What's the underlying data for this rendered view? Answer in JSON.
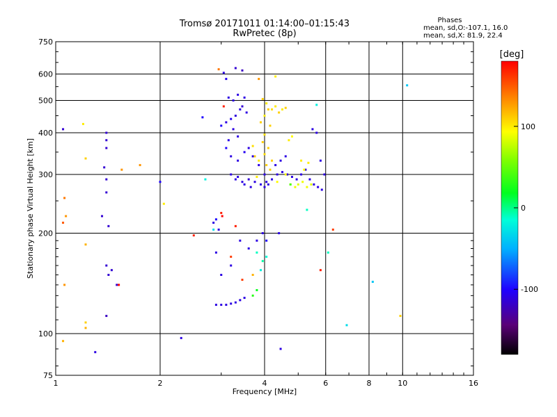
{
  "chart_data": {
    "type": "scatter",
    "title": "Tromsø 20171011 01:14:00–01:15:43",
    "subtitle": "RwPretec (8p)",
    "xlabel": "Frequency [MHz]",
    "ylabel": "Stationary phase Virtual Height [km]",
    "x_scale": "log",
    "y_scale": "log",
    "xlim": [
      1,
      16
    ],
    "ylim": [
      75,
      750
    ],
    "x_ticks": [
      "1",
      "2",
      "4",
      "6",
      "8",
      "10",
      "16"
    ],
    "y_ticks": [
      "75",
      "100",
      "200",
      "300",
      "400",
      "500",
      "600",
      "750"
    ],
    "grid": true,
    "phases": {
      "header": "Phases",
      "o_line": "mean, sd,O:-107.1, 16.0",
      "x_line": "mean, sd,X:  81.9, 22.4"
    },
    "colorbar": {
      "label": "[deg]",
      "range": [
        -180,
        180
      ],
      "ticks": [
        "100",
        "0",
        "-100"
      ]
    },
    "series": [
      {
        "points": [
          [
            3.05,
            605,
            -110
          ],
          [
            3.3,
            625,
            -115
          ],
          [
            3.45,
            615,
            -120
          ],
          [
            3.1,
            580,
            -105
          ],
          [
            3.15,
            510,
            -110
          ],
          [
            3.25,
            500,
            -110
          ],
          [
            3.35,
            520,
            -110
          ],
          [
            3.5,
            510,
            -110
          ],
          [
            3.4,
            470,
            -110
          ],
          [
            3.3,
            450,
            -112
          ],
          [
            3.2,
            440,
            -105
          ],
          [
            3.1,
            430,
            -110
          ],
          [
            3.25,
            410,
            -110
          ],
          [
            3.35,
            390,
            -110
          ],
          [
            3.15,
            380,
            -108
          ],
          [
            3.0,
            420,
            -100
          ],
          [
            3.45,
            480,
            -115
          ],
          [
            3.55,
            460,
            -110
          ],
          [
            3.1,
            360,
            -100
          ],
          [
            3.2,
            340,
            -110
          ],
          [
            3.35,
            330,
            -110
          ],
          [
            3.5,
            350,
            -105
          ],
          [
            3.2,
            300,
            -110
          ],
          [
            3.3,
            290,
            -110
          ],
          [
            3.45,
            285,
            -110
          ],
          [
            3.6,
            290,
            -115
          ],
          [
            3.75,
            285,
            -110
          ],
          [
            3.9,
            280,
            -110
          ],
          [
            4.0,
            275,
            -110
          ],
          [
            4.1,
            280,
            -110
          ],
          [
            4.2,
            290,
            -110
          ],
          [
            4.35,
            300,
            -110
          ],
          [
            4.5,
            305,
            -110
          ],
          [
            4.65,
            300,
            -115
          ],
          [
            4.8,
            295,
            -110
          ],
          [
            4.95,
            290,
            -110
          ],
          [
            5.1,
            300,
            -110
          ],
          [
            5.25,
            310,
            -110
          ],
          [
            5.4,
            290,
            -110
          ],
          [
            5.55,
            280,
            -110
          ],
          [
            5.7,
            275,
            -110
          ],
          [
            5.85,
            270,
            -110
          ],
          [
            5.95,
            300,
            -110
          ],
          [
            5.8,
            330,
            -110
          ],
          [
            4.3,
            320,
            -110
          ],
          [
            4.45,
            330,
            -110
          ],
          [
            4.6,
            340,
            -110
          ],
          [
            3.6,
            360,
            -110
          ],
          [
            3.7,
            340,
            -110
          ],
          [
            3.85,
            320,
            -110
          ],
          [
            4.0,
            300,
            -110
          ],
          [
            4.05,
            285,
            -110
          ],
          [
            3.35,
            295,
            -110
          ],
          [
            3.5,
            280,
            -110
          ],
          [
            3.65,
            275,
            -110
          ],
          [
            5.5,
            410,
            -110
          ],
          [
            5.65,
            400,
            -110
          ],
          [
            2.85,
            215,
            -110
          ],
          [
            2.9,
            220,
            -100
          ],
          [
            2.95,
            205,
            -110
          ],
          [
            3.4,
            190,
            -110
          ],
          [
            3.6,
            180,
            -110
          ],
          [
            3.8,
            190,
            -110
          ],
          [
            3.95,
            200,
            -110
          ],
          [
            2.9,
            175,
            -110
          ],
          [
            3.2,
            160,
            -110
          ],
          [
            3.0,
            150,
            -110
          ],
          [
            2.9,
            122,
            -110
          ],
          [
            3.0,
            122,
            -110
          ],
          [
            3.1,
            122,
            -110
          ],
          [
            3.2,
            123,
            -110
          ],
          [
            3.3,
            124,
            -110
          ],
          [
            3.4,
            126,
            -110
          ],
          [
            3.5,
            128,
            -110
          ],
          [
            1.4,
            400,
            -115
          ],
          [
            1.4,
            380,
            -115
          ],
          [
            1.4,
            360,
            -115
          ],
          [
            1.38,
            315,
            -115
          ],
          [
            1.4,
            290,
            -115
          ],
          [
            1.4,
            265,
            -115
          ],
          [
            1.36,
            225,
            -115
          ],
          [
            1.42,
            210,
            -115
          ],
          [
            1.4,
            160,
            -115
          ],
          [
            1.45,
            155,
            -115
          ],
          [
            1.42,
            150,
            -115
          ],
          [
            1.5,
            140,
            -115
          ],
          [
            1.4,
            113,
            -120
          ],
          [
            1.3,
            88,
            -110
          ],
          [
            1.05,
            410,
            -115
          ],
          [
            2.0,
            285,
            -100
          ],
          [
            2.3,
            97,
            -110
          ],
          [
            2.65,
            445,
            -100
          ],
          [
            4.4,
            200,
            -110
          ],
          [
            4.45,
            90,
            -110
          ],
          [
            4.05,
            190,
            -100
          ]
        ]
      },
      {
        "points": [
          [
            3.95,
            505,
            110
          ],
          [
            4.05,
            490,
            100
          ],
          [
            4.1,
            470,
            110
          ],
          [
            4.0,
            450,
            100
          ],
          [
            3.9,
            430,
            110
          ],
          [
            4.15,
            420,
            110
          ],
          [
            4.2,
            470,
            105
          ],
          [
            4.3,
            480,
            100
          ],
          [
            4.4,
            460,
            110
          ],
          [
            4.5,
            470,
            100
          ],
          [
            4.6,
            475,
            110
          ],
          [
            4.0,
            395,
            105
          ],
          [
            3.95,
            375,
            110
          ],
          [
            4.1,
            360,
            110
          ],
          [
            4.0,
            345,
            105
          ],
          [
            3.85,
            330,
            100
          ],
          [
            4.05,
            320,
            110
          ],
          [
            4.15,
            310,
            110
          ],
          [
            4.2,
            330,
            110
          ],
          [
            4.6,
            300,
            95
          ],
          [
            4.75,
            280,
            90
          ],
          [
            4.9,
            275,
            90
          ],
          [
            5.0,
            280,
            85
          ],
          [
            5.15,
            285,
            90
          ],
          [
            5.3,
            275,
            90
          ],
          [
            5.45,
            280,
            85
          ],
          [
            5.2,
            310,
            95
          ],
          [
            5.35,
            325,
            100
          ],
          [
            5.1,
            330,
            100
          ],
          [
            4.7,
            380,
            100
          ],
          [
            4.8,
            390,
            95
          ],
          [
            3.8,
            295,
            100
          ],
          [
            4.3,
            590,
            100
          ],
          [
            3.7,
            365,
            105
          ],
          [
            3.75,
            340,
            110
          ],
          [
            4.35,
            285,
            95
          ]
        ]
      },
      {
        "points": [
          [
            1.06,
            255,
            140
          ],
          [
            1.05,
            215,
            150
          ],
          [
            1.07,
            225,
            130
          ],
          [
            1.06,
            140,
            130
          ],
          [
            1.05,
            95,
            120
          ],
          [
            1.2,
            425,
            100
          ],
          [
            1.22,
            335,
            110
          ],
          [
            1.22,
            185,
            120
          ],
          [
            1.22,
            108,
            110
          ],
          [
            1.22,
            104,
            120
          ],
          [
            1.55,
            310,
            130
          ],
          [
            1.75,
            320,
            130
          ],
          [
            2.05,
            245,
            100
          ],
          [
            2.5,
            197,
            170
          ],
          [
            3.0,
            230,
            170
          ],
          [
            3.02,
            225,
            180
          ],
          [
            3.3,
            210,
            170
          ],
          [
            3.45,
            145,
            160
          ],
          [
            5.8,
            155,
            170
          ],
          [
            6.3,
            205,
            160
          ],
          [
            1.52,
            140,
            180
          ],
          [
            3.05,
            480,
            170
          ],
          [
            2.95,
            620,
            140
          ],
          [
            3.85,
            580,
            130
          ],
          [
            3.7,
            150,
            120
          ],
          [
            3.2,
            170,
            160
          ]
        ]
      },
      {
        "points": [
          [
            3.8,
            175,
            -10
          ],
          [
            3.95,
            165,
            -5
          ],
          [
            4.05,
            170,
            -15
          ],
          [
            3.9,
            155,
            -20
          ],
          [
            5.3,
            235,
            -10
          ],
          [
            5.65,
            485,
            -20
          ],
          [
            6.1,
            175,
            -10
          ],
          [
            6.9,
            106,
            -30
          ],
          [
            8.2,
            143,
            -40
          ],
          [
            10.3,
            555,
            -40
          ],
          [
            2.7,
            290,
            -20
          ],
          [
            2.85,
            205,
            -30
          ],
          [
            3.8,
            135,
            20
          ],
          [
            3.7,
            130,
            30
          ],
          [
            9.85,
            113,
            110
          ],
          [
            4.75,
            280,
            40
          ]
        ]
      }
    ]
  }
}
